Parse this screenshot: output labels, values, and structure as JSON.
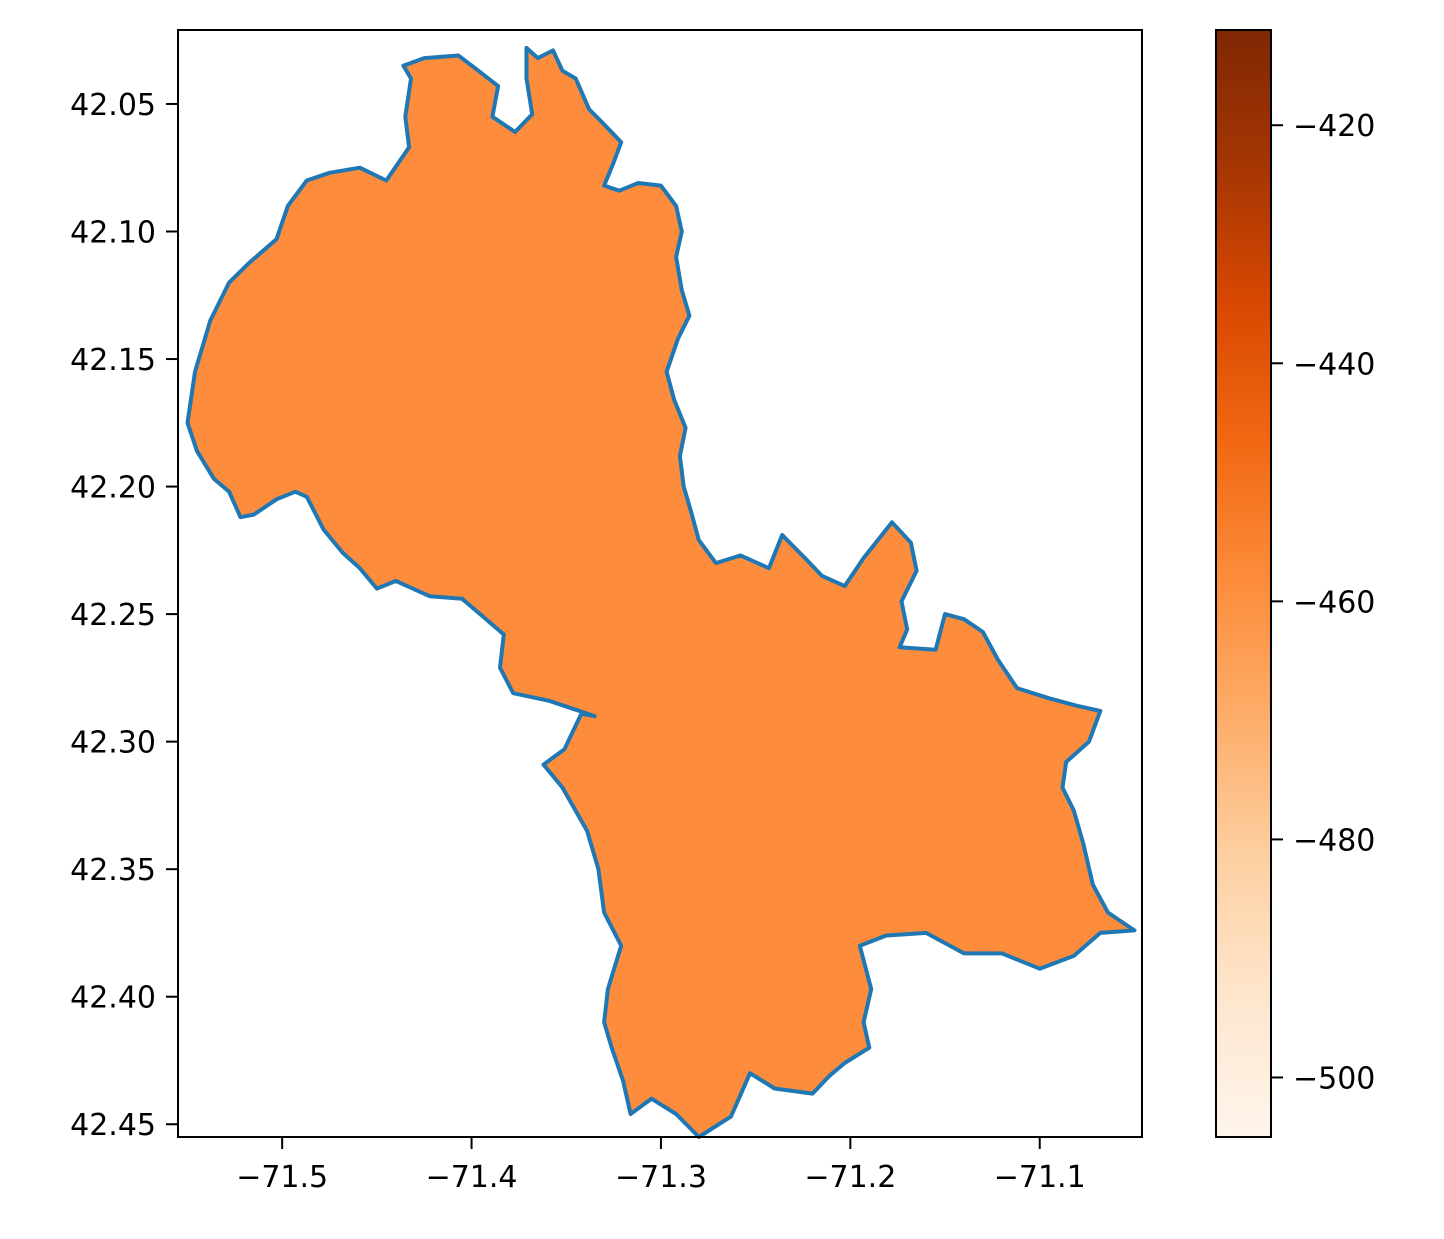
{
  "chart_data": {
    "type": "heatmap",
    "title": "",
    "xlabel": "",
    "ylabel": "",
    "xlim": [
      -71.555,
      -71.046
    ],
    "ylim": [
      42.455,
      42.021
    ],
    "x_ticks": [
      -71.5,
      -71.4,
      -71.3,
      -71.2,
      -71.1
    ],
    "x_tick_labels": [
      "−71.5",
      "−71.4",
      "−71.3",
      "−71.2",
      "−71.1"
    ],
    "y_ticks": [
      42.05,
      42.1,
      42.15,
      42.2,
      42.25,
      42.3,
      42.35,
      42.4,
      42.45
    ],
    "y_tick_labels": [
      "42.05",
      "42.10",
      "42.15",
      "42.20",
      "42.25",
      "42.30",
      "42.35",
      "42.40",
      "42.45"
    ],
    "region_value": -466,
    "region_fill_color": "#fd8c3c",
    "boundary_color": "#1f77b4",
    "colorbar": {
      "colormap": "Oranges",
      "vmin": -505,
      "vmax": -412,
      "ticks": [
        -420,
        -440,
        -460,
        -480,
        -500
      ],
      "tick_labels": [
        "−420",
        "−440",
        "−460",
        "−480",
        "−500"
      ]
    },
    "boundary": [
      [
        -71.371,
        42.028
      ],
      [
        -71.365,
        42.032
      ],
      [
        -71.357,
        42.029
      ],
      [
        -71.352,
        42.037
      ],
      [
        -71.345,
        42.04
      ],
      [
        -71.338,
        42.052
      ],
      [
        -71.33,
        42.058
      ],
      [
        -71.321,
        42.065
      ],
      [
        -71.325,
        42.073
      ],
      [
        -71.33,
        42.082
      ],
      [
        -71.322,
        42.084
      ],
      [
        -71.312,
        42.081
      ],
      [
        -71.3,
        42.082
      ],
      [
        -71.292,
        42.09
      ],
      [
        -71.289,
        42.1
      ],
      [
        -71.292,
        42.11
      ],
      [
        -71.289,
        42.123
      ],
      [
        -71.285,
        42.133
      ],
      [
        -71.291,
        42.142
      ],
      [
        -71.297,
        42.155
      ],
      [
        -71.293,
        42.166
      ],
      [
        -71.287,
        42.177
      ],
      [
        -71.29,
        42.188
      ],
      [
        -71.288,
        42.2
      ],
      [
        -71.284,
        42.21
      ],
      [
        -71.28,
        42.221
      ],
      [
        -71.271,
        42.23
      ],
      [
        -71.258,
        42.227
      ],
      [
        -71.243,
        42.232
      ],
      [
        -71.236,
        42.219
      ],
      [
        -71.224,
        42.228
      ],
      [
        -71.215,
        42.235
      ],
      [
        -71.203,
        42.239
      ],
      [
        -71.193,
        42.228
      ],
      [
        -71.178,
        42.214
      ],
      [
        -71.168,
        42.222
      ],
      [
        -71.165,
        42.233
      ],
      [
        -71.173,
        42.245
      ],
      [
        -71.17,
        42.256
      ],
      [
        -71.174,
        42.263
      ],
      [
        -71.155,
        42.264
      ],
      [
        -71.15,
        42.25
      ],
      [
        -71.14,
        42.252
      ],
      [
        -71.13,
        42.257
      ],
      [
        -71.122,
        42.268
      ],
      [
        -71.112,
        42.279
      ],
      [
        -71.095,
        42.283
      ],
      [
        -71.08,
        42.286
      ],
      [
        -71.068,
        42.288
      ],
      [
        -71.074,
        42.3
      ],
      [
        -71.086,
        42.308
      ],
      [
        -71.088,
        42.318
      ],
      [
        -71.082,
        42.327
      ],
      [
        -71.077,
        42.34
      ],
      [
        -71.072,
        42.356
      ],
      [
        -71.064,
        42.367
      ],
      [
        -71.05,
        42.374
      ],
      [
        -71.068,
        42.375
      ],
      [
        -71.082,
        42.384
      ],
      [
        -71.1,
        42.389
      ],
      [
        -71.12,
        42.383
      ],
      [
        -71.14,
        42.383
      ],
      [
        -71.16,
        42.375
      ],
      [
        -71.181,
        42.376
      ],
      [
        -71.195,
        42.38
      ],
      [
        -71.189,
        42.397
      ],
      [
        -71.193,
        42.41
      ],
      [
        -71.19,
        42.42
      ],
      [
        -71.203,
        42.426
      ],
      [
        -71.211,
        42.431
      ],
      [
        -71.22,
        42.438
      ],
      [
        -71.24,
        42.436
      ],
      [
        -71.253,
        42.43
      ],
      [
        -71.263,
        42.447
      ],
      [
        -71.28,
        42.455
      ],
      [
        -71.292,
        42.446
      ],
      [
        -71.305,
        42.44
      ],
      [
        -71.316,
        42.446
      ],
      [
        -71.32,
        42.433
      ],
      [
        -71.326,
        42.42
      ],
      [
        -71.33,
        42.41
      ],
      [
        -71.328,
        42.397
      ],
      [
        -71.321,
        42.38
      ],
      [
        -71.33,
        42.367
      ],
      [
        -71.333,
        42.35
      ],
      [
        -71.339,
        42.335
      ],
      [
        -71.352,
        42.318
      ],
      [
        -71.362,
        42.309
      ],
      [
        -71.351,
        42.303
      ],
      [
        -71.342,
        42.289
      ],
      [
        -71.335,
        42.29
      ],
      [
        -71.359,
        42.284
      ],
      [
        -71.378,
        42.281
      ],
      [
        -71.385,
        42.271
      ],
      [
        -71.383,
        42.258
      ],
      [
        -71.397,
        42.249
      ],
      [
        -71.405,
        42.244
      ],
      [
        -71.422,
        42.243
      ],
      [
        -71.44,
        42.237
      ],
      [
        -71.45,
        42.24
      ],
      [
        -71.459,
        42.232
      ],
      [
        -71.468,
        42.226
      ],
      [
        -71.478,
        42.217
      ],
      [
        -71.487,
        42.204
      ],
      [
        -71.493,
        42.202
      ],
      [
        -71.503,
        42.205
      ],
      [
        -71.515,
        42.211
      ],
      [
        -71.522,
        42.212
      ],
      [
        -71.528,
        42.202
      ],
      [
        -71.536,
        42.197
      ],
      [
        -71.545,
        42.186
      ],
      [
        -71.55,
        42.175
      ],
      [
        -71.546,
        42.155
      ],
      [
        -71.538,
        42.135
      ],
      [
        -71.528,
        42.12
      ],
      [
        -71.517,
        42.112
      ],
      [
        -71.503,
        42.103
      ],
      [
        -71.497,
        42.09
      ],
      [
        -71.487,
        42.08
      ],
      [
        -71.475,
        42.077
      ],
      [
        -71.459,
        42.075
      ],
      [
        -71.445,
        42.08
      ],
      [
        -71.433,
        42.067
      ],
      [
        -71.435,
        42.055
      ],
      [
        -71.432,
        42.04
      ],
      [
        -71.436,
        42.035
      ],
      [
        -71.425,
        42.032
      ],
      [
        -71.407,
        42.031
      ],
      [
        -71.398,
        42.036
      ],
      [
        -71.386,
        42.043
      ],
      [
        -71.389,
        42.055
      ],
      [
        -71.377,
        42.061
      ],
      [
        -71.368,
        42.054
      ],
      [
        -71.371,
        42.04
      ],
      [
        -71.371,
        42.028
      ]
    ]
  }
}
